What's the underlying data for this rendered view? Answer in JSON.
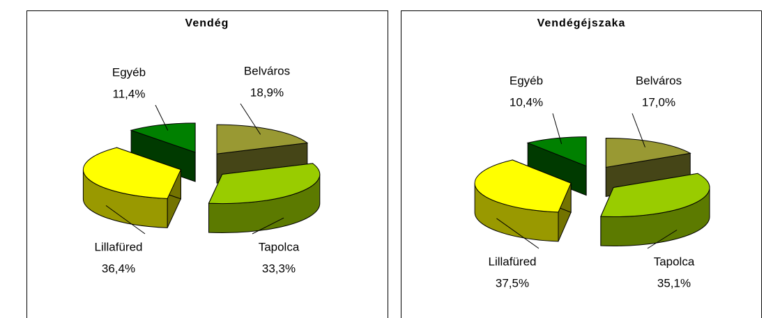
{
  "chart_data": [
    {
      "type": "pie",
      "title": "Vendég",
      "categories": [
        "Belváros",
        "Tapolca",
        "Lillafüred",
        "Egyéb"
      ],
      "values": [
        18.9,
        33.3,
        36.4,
        11.4
      ],
      "value_labels": [
        "18,9%",
        "33,3%",
        "36,4%",
        "11,4%"
      ],
      "colors": [
        "#999933",
        "#99cc00",
        "#ffff00",
        "#008000"
      ]
    },
    {
      "type": "pie",
      "title": "Vendégéjszaka",
      "categories": [
        "Belváros",
        "Tapolca",
        "Lillafüred",
        "Egyéb"
      ],
      "values": [
        17.0,
        35.1,
        37.5,
        10.4
      ],
      "value_labels": [
        "17,0%",
        "35,1%",
        "37,5%",
        "10,4%"
      ],
      "colors": [
        "#999933",
        "#99cc00",
        "#ffff00",
        "#008000"
      ]
    }
  ]
}
